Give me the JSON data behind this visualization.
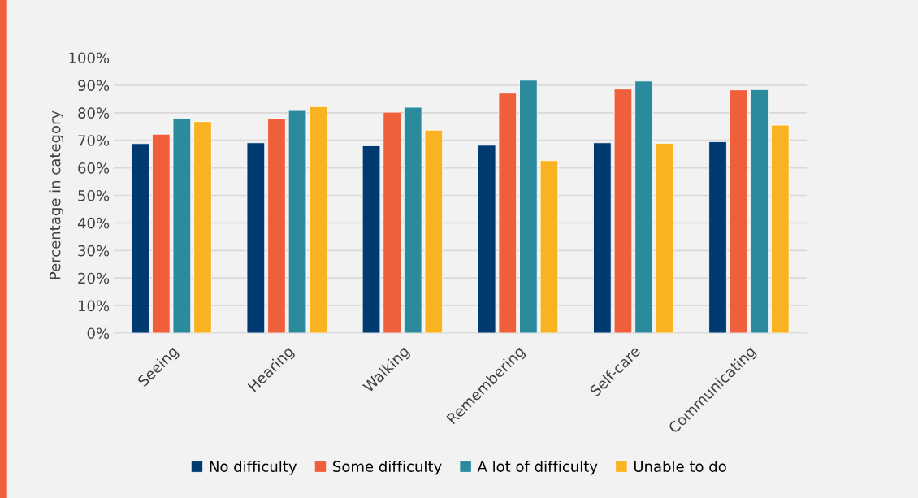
{
  "chart_data": {
    "type": "bar",
    "ylabel": "Percentage in category",
    "categories": [
      "Seeing",
      "Hearing",
      "Walking",
      "Remembering",
      "Self-care",
      "Communicating"
    ],
    "series": [
      {
        "name": "No difficulty",
        "color": "#003a70",
        "values": [
          68.8,
          69.1,
          68.0,
          68.2,
          69.1,
          69.5
        ]
      },
      {
        "name": "Some difficulty",
        "color": "#f05f3c",
        "values": [
          72.2,
          77.9,
          80.2,
          87.1,
          88.6,
          88.3
        ]
      },
      {
        "name": "A lot of difficulty",
        "color": "#2b8a9b",
        "values": [
          78.0,
          80.8,
          82.0,
          91.8,
          91.5,
          88.4
        ]
      },
      {
        "name": "Unable to do",
        "color": "#f9b322",
        "values": [
          76.8,
          82.2,
          73.7,
          62.6,
          68.9,
          75.5
        ]
      }
    ],
    "ylim": [
      0,
      100
    ],
    "yticks": [
      {
        "value": 0,
        "label": "0%"
      },
      {
        "value": 10,
        "label": "10%"
      },
      {
        "value": 20,
        "label": "20%"
      },
      {
        "value": 30,
        "label": "30%"
      },
      {
        "value": 40,
        "label": "40%"
      },
      {
        "value": 50,
        "label": "50%"
      },
      {
        "value": 60,
        "label": "60%"
      },
      {
        "value": 70,
        "label": "70%"
      },
      {
        "value": 80,
        "label": "80%"
      },
      {
        "value": 90,
        "label": "90%"
      },
      {
        "value": 100,
        "label": "100%"
      }
    ],
    "grid": "y",
    "legend": "bottom"
  }
}
